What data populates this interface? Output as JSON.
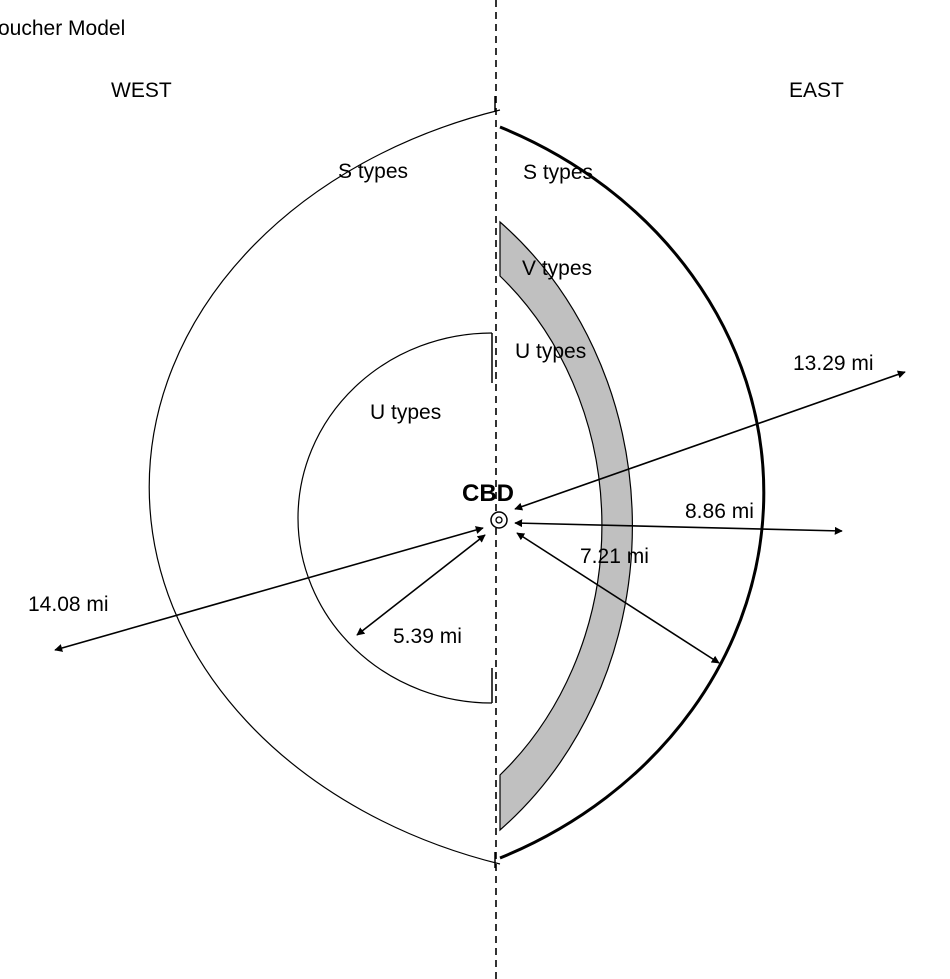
{
  "title": "oucher Model",
  "directions": {
    "west": "WEST",
    "east": "EAST"
  },
  "center_label": "CBD",
  "zones": {
    "s_types_west": "S types",
    "s_types_east": "S types",
    "v_types": "V types",
    "u_types_east": "U types",
    "u_types_west": "U types"
  },
  "distances": {
    "west_outer": "14.08 mi",
    "west_inner": "5.39 mi",
    "east_outer": "13.29 mi",
    "east_v_outer": "8.86 mi",
    "east_inner": "7.21 mi"
  },
  "colors": {
    "line": "#000000",
    "band_fill": "#c0c0c0",
    "background": "#ffffff"
  }
}
